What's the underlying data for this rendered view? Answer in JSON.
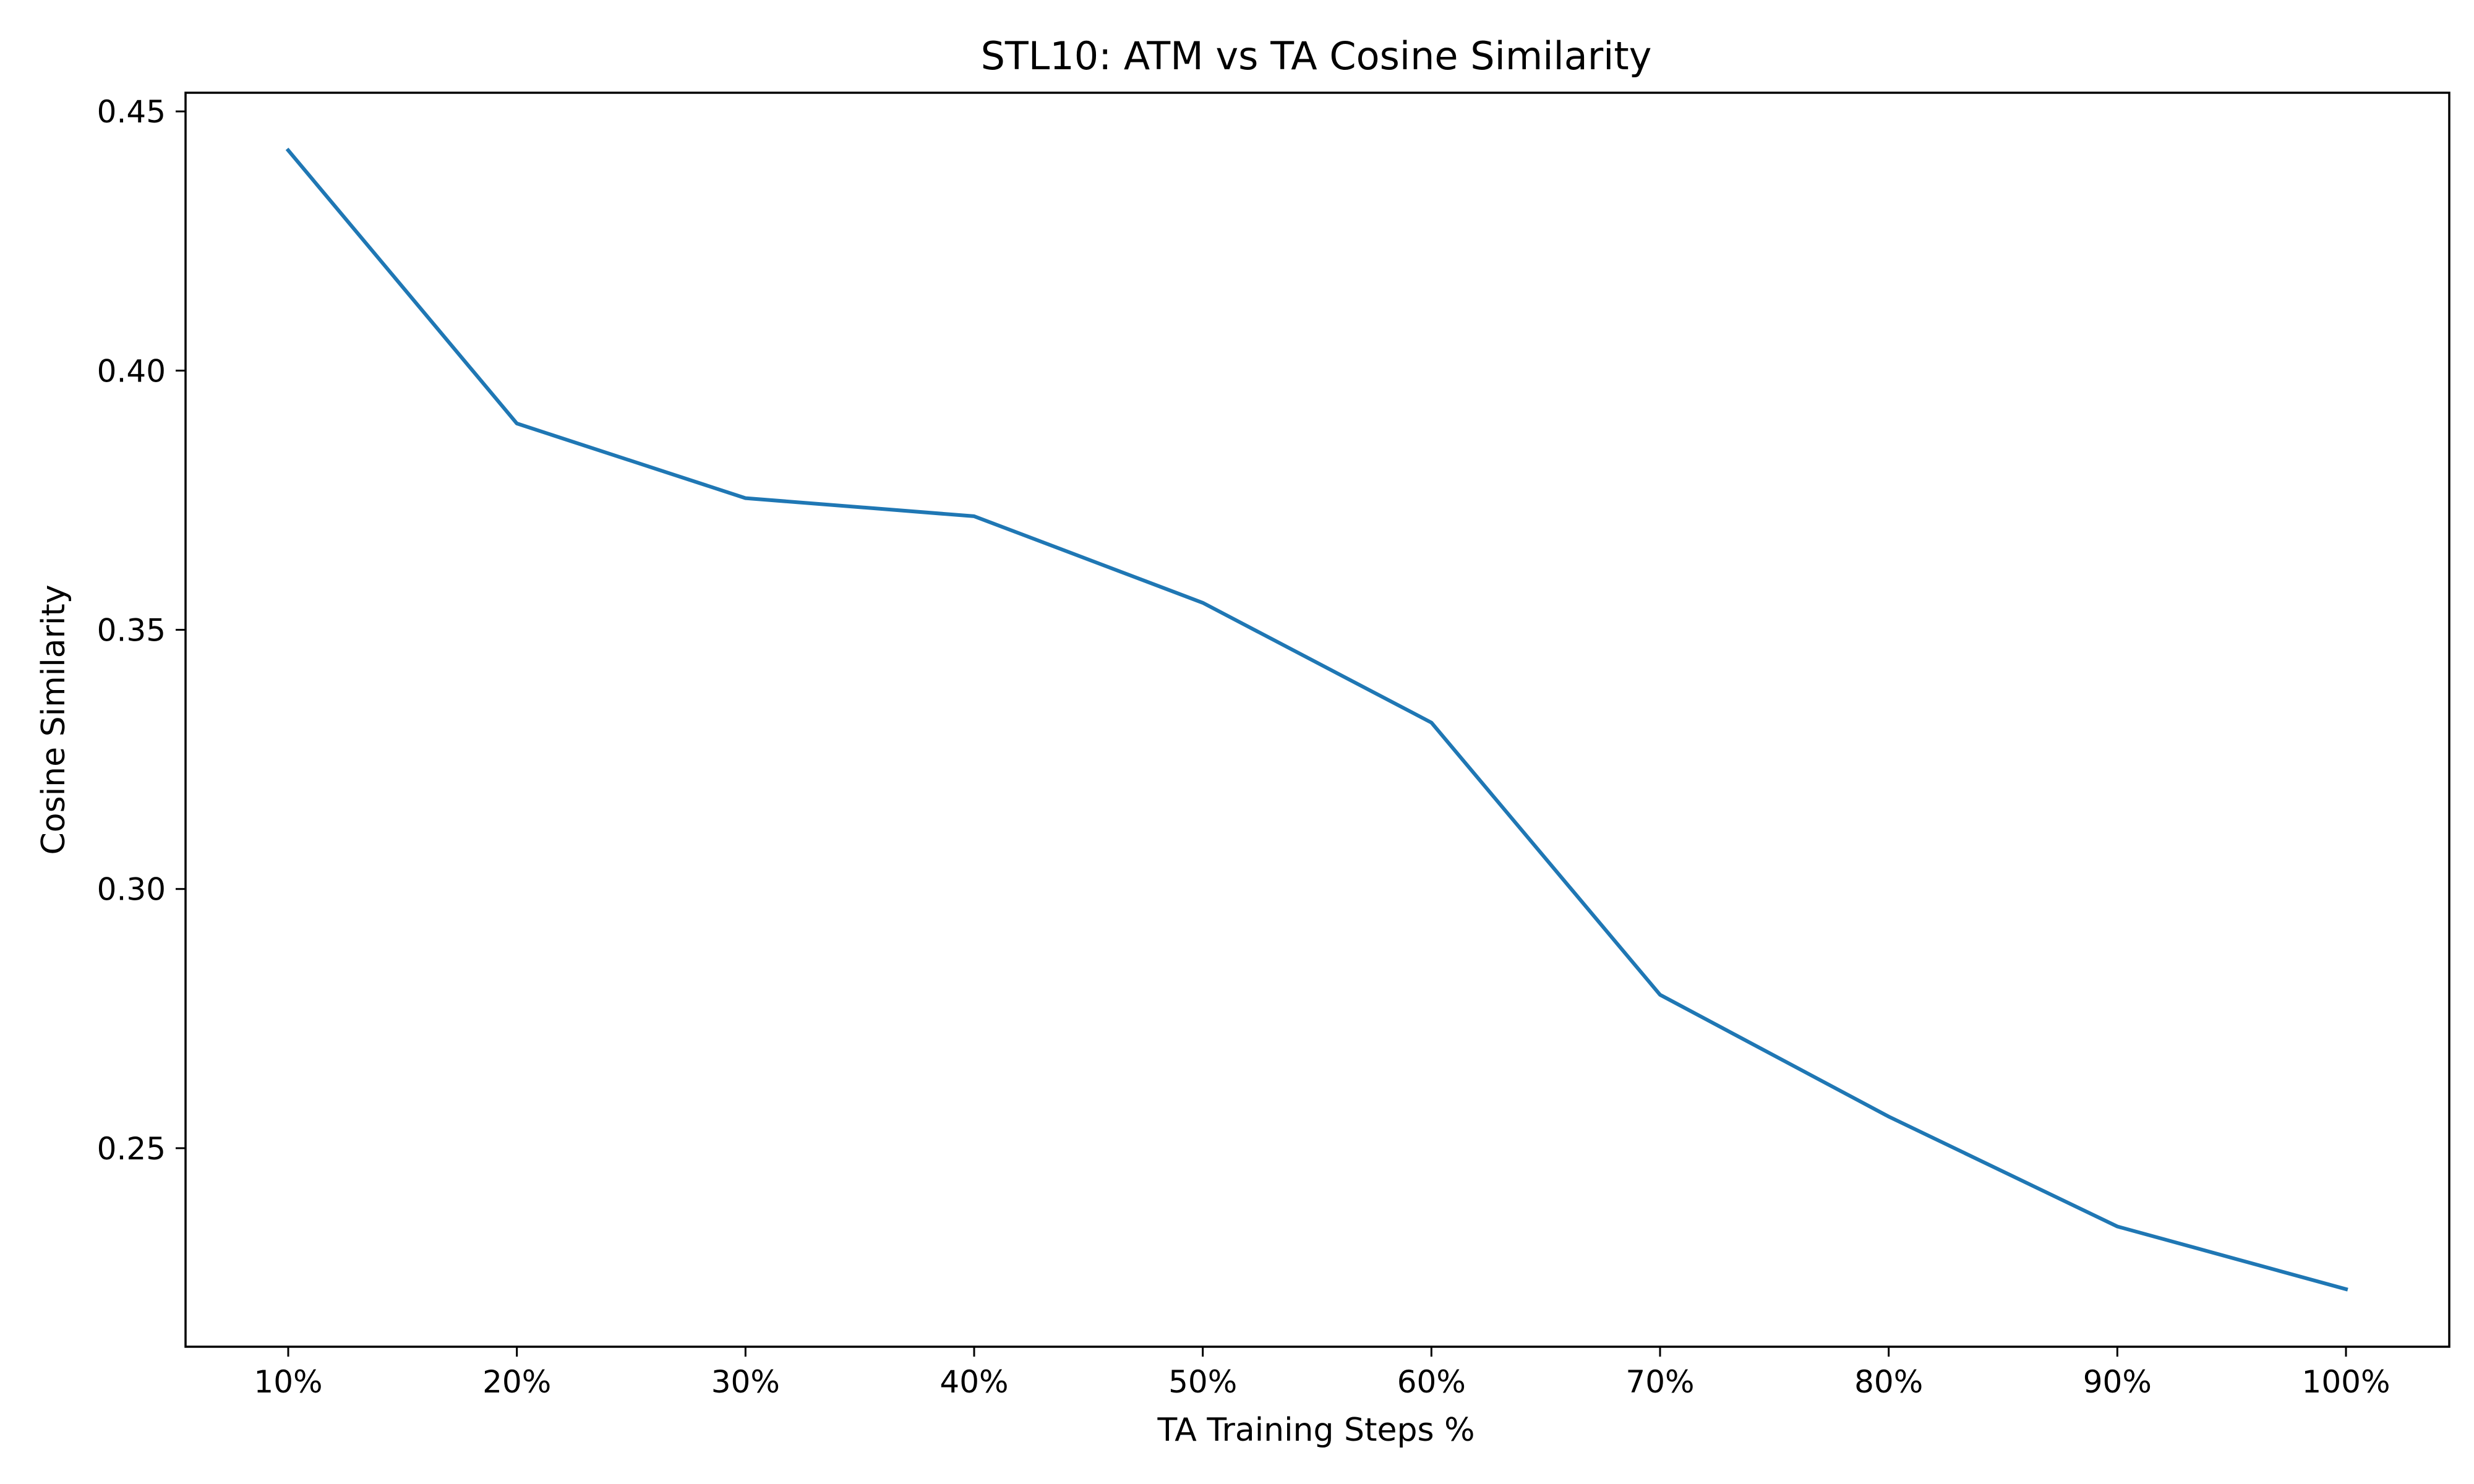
{
  "chart_data": {
    "type": "line",
    "title": "STL10: ATM vs TA Cosine Similarity",
    "xlabel": "TA Training Steps %",
    "ylabel": "Cosine Similarity",
    "categories": [
      "10%",
      "20%",
      "30%",
      "40%",
      "50%",
      "60%",
      "70%",
      "80%",
      "90%",
      "100%"
    ],
    "series": [
      {
        "values": [
          0.4425,
          0.3898,
          0.3754,
          0.3719,
          0.3552,
          0.3321,
          0.2796,
          0.2561,
          0.2349,
          0.2228
        ]
      }
    ],
    "yticks": [
      0.25,
      0.3,
      0.35,
      0.4,
      0.45
    ],
    "ytick_labels": [
      "0.25",
      "0.30",
      "0.35",
      "0.40",
      "0.45"
    ],
    "ylim": [
      0.2117,
      0.4536
    ],
    "grid": false,
    "colors": {
      "line": "#1f77b4",
      "axes": "#000000"
    }
  }
}
